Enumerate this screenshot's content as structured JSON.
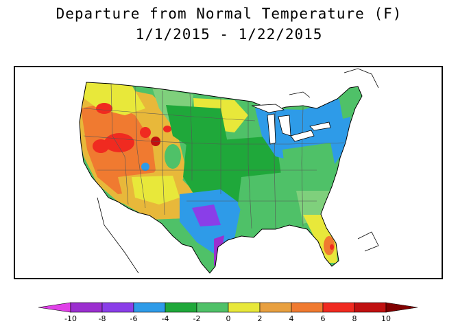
{
  "title": "Departure from Normal Temperature (F)",
  "subtitle": "1/1/2015 - 1/22/2015",
  "legend": {
    "ticks": [
      "-10",
      "-8",
      "-6",
      "-4",
      "-2",
      "0",
      "2",
      "4",
      "6",
      "8",
      "10"
    ],
    "colors": {
      "magenta": "#e040e8",
      "purple_dark": "#9b2fcf",
      "purple": "#8a3ee8",
      "blue": "#2e9be8",
      "green_dark": "#1fa83a",
      "green": "#4fc168",
      "green_light": "#7fd07c",
      "yellow": "#e8e83a",
      "yellow_orange": "#e8b83a",
      "orange_light": "#e8a040",
      "orange": "#f07a30",
      "red": "#f02a20",
      "red_dark": "#c01010",
      "maroon": "#800000"
    }
  }
}
